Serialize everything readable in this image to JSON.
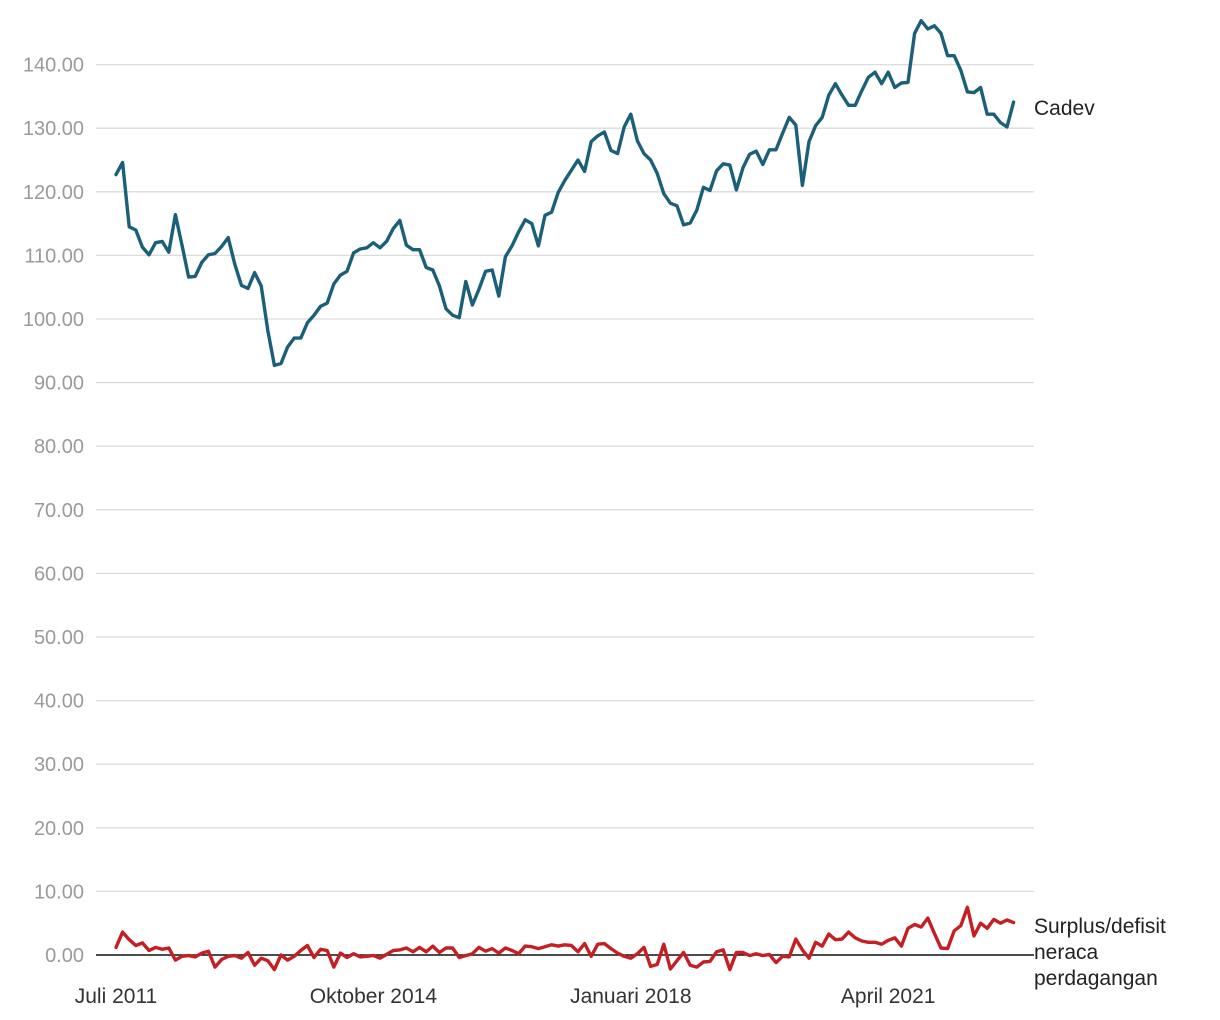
{
  "chart_data": {
    "type": "line",
    "title": "",
    "xlabel": "",
    "ylabel": "",
    "ylim": [
      0,
      140
    ],
    "yticks": [
      "0.00",
      "10.00",
      "20.00",
      "30.00",
      "40.00",
      "50.00",
      "60.00",
      "70.00",
      "80.00",
      "90.00",
      "100.00",
      "110.00",
      "120.00",
      "130.00",
      "140.00"
    ],
    "xticks": [
      "Juli 2011",
      "Oktober 2014",
      "Januari 2018",
      "April 2021"
    ],
    "x_start": "2011-07",
    "grid": true,
    "colors": {
      "cadev": "#1b5f78",
      "neraca": "#c42024",
      "grid": "#dcdcdc",
      "axis": "#111111"
    },
    "series": [
      {
        "key": "cadev",
        "name": "Cadev",
        "values": [
          122.7,
          124.6,
          114.5,
          114.0,
          111.3,
          110.1,
          112.0,
          112.2,
          110.5,
          116.4,
          111.6,
          106.6,
          106.7,
          108.9,
          110.1,
          110.3,
          111.4,
          112.8,
          108.6,
          105.3,
          104.8,
          107.3,
          105.2,
          98.2,
          92.7,
          93.0,
          95.6,
          97.0,
          97.0,
          99.4,
          100.6,
          102.0,
          102.5,
          105.5,
          106.9,
          107.5,
          110.4,
          111.0,
          111.2,
          112.0,
          111.2,
          112.2,
          114.2,
          115.5,
          111.6,
          110.9,
          110.9,
          108.1,
          107.7,
          105.2,
          101.6,
          100.6,
          100.2,
          105.9,
          102.2,
          104.7,
          107.5,
          107.7,
          103.6,
          109.8,
          111.5,
          113.7,
          115.6,
          115.0,
          111.5,
          116.3,
          116.8,
          119.9,
          121.8,
          123.4,
          125.0,
          123.2,
          127.9,
          128.8,
          129.4,
          126.5,
          126.0,
          130.2,
          132.2,
          128.0,
          126.0,
          125.0,
          122.9,
          119.7,
          118.2,
          117.8,
          114.8,
          115.1,
          117.1,
          120.7,
          120.2,
          123.3,
          124.4,
          124.2,
          120.3,
          123.8,
          125.9,
          126.4,
          124.3,
          126.6,
          126.6,
          129.2,
          131.7,
          130.5,
          121.0,
          127.9,
          130.4,
          131.7,
          135.2,
          137.0,
          135.2,
          133.6,
          133.6,
          135.9,
          138.0,
          138.8,
          137.0,
          138.8,
          136.4,
          137.1,
          137.2,
          144.9,
          146.9,
          145.6,
          146.1,
          144.9,
          141.4,
          141.4,
          139.1,
          135.7,
          135.6,
          136.4,
          132.2,
          132.2,
          130.9,
          130.2,
          134.1
        ]
      },
      {
        "key": "neraca",
        "name": "Surplus/defisit neraca perdagangan",
        "values": [
          1.2,
          3.6,
          2.4,
          1.5,
          1.9,
          0.7,
          1.2,
          0.9,
          1.1,
          -0.8,
          -0.2,
          -0.1,
          -0.3,
          0.3,
          0.6,
          -1.9,
          -0.7,
          -0.2,
          -0.1,
          -0.5,
          0.4,
          -1.6,
          -0.5,
          -0.9,
          -2.3,
          0.0,
          -0.8,
          -0.2,
          0.7,
          1.5,
          -0.4,
          0.9,
          0.7,
          -1.9,
          0.3,
          -0.4,
          0.2,
          -0.3,
          -0.2,
          -0.1,
          -0.5,
          0.1,
          0.7,
          0.8,
          1.1,
          0.5,
          1.2,
          0.5,
          1.4,
          0.4,
          1.1,
          1.1,
          -0.4,
          -0.1,
          0.2,
          1.2,
          0.6,
          1.0,
          0.3,
          1.1,
          0.7,
          0.2,
          1.4,
          1.3,
          1.0,
          1.3,
          1.6,
          1.4,
          1.6,
          1.5,
          0.5,
          1.8,
          -0.2,
          1.7,
          1.8,
          1.0,
          0.3,
          -0.2,
          -0.5,
          0.2,
          1.2,
          -1.8,
          -1.5,
          1.7,
          -2.2,
          -0.9,
          0.4,
          -1.6,
          -1.9,
          -1.1,
          -1.0,
          0.5,
          0.8,
          -2.3,
          0.4,
          0.4,
          -0.1,
          0.2,
          -0.1,
          0.1,
          -1.2,
          -0.2,
          -0.3,
          2.5,
          0.8,
          -0.5,
          2.0,
          1.4,
          3.3,
          2.4,
          2.5,
          3.6,
          2.7,
          2.2,
          2.0,
          2.0,
          1.7,
          2.3,
          2.7,
          1.4,
          4.2,
          4.8,
          4.4,
          5.8,
          3.4,
          1.1,
          1.0,
          3.8,
          4.6,
          7.5,
          3.0,
          5.0,
          4.2,
          5.6,
          5.0,
          5.5,
          5.1
        ]
      }
    ]
  }
}
